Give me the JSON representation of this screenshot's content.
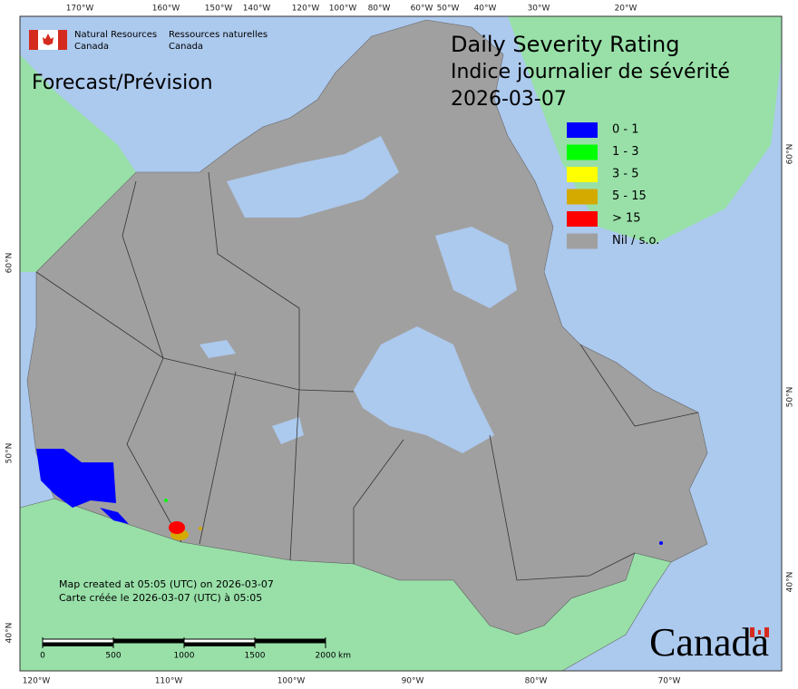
{
  "header": {
    "agency_en": [
      "Natural Resources",
      "Canada"
    ],
    "agency_fr": [
      "Ressources naturelles",
      "Canada"
    ],
    "forecast": "Forecast/Prévision",
    "title": [
      "Daily Severity Rating",
      "Indice journalier de sévérité",
      "2026-03-07"
    ]
  },
  "legend": [
    {
      "label": "0 - 1",
      "color": "#0000ff"
    },
    {
      "label": "1 - 3",
      "color": "#00ff00"
    },
    {
      "label": "3 - 5",
      "color": "#ffff00"
    },
    {
      "label": "5 - 15",
      "color": "#d4aa00"
    },
    {
      "label": "> 15",
      "color": "#ff0000"
    },
    {
      "label": "Nil / s.o.",
      "color": "#a0a0a0"
    }
  ],
  "graticule": {
    "top": [
      "170°W",
      "160°W",
      "150°W",
      "140°W",
      "120°W",
      "100°W",
      "80°W",
      "60°W",
      "50°W",
      "40°W",
      "30°W",
      "20°W"
    ],
    "bottom": [
      "120°W",
      "110°W",
      "100°W",
      "90°W",
      "80°W",
      "70°W"
    ],
    "left": [
      "60°N",
      "50°N",
      "40°N"
    ],
    "right": [
      "60°N",
      "50°N",
      "40°N"
    ]
  },
  "footer": [
    "Map created at 05:05 (UTC) on 2026-03-07",
    "Carte créée le 2026-03-07 (UTC) à 05:05"
  ],
  "scale": {
    "ticks": [
      0,
      500,
      1000,
      1500,
      2000
    ],
    "unit": "km"
  },
  "wordmark": "Canada"
}
